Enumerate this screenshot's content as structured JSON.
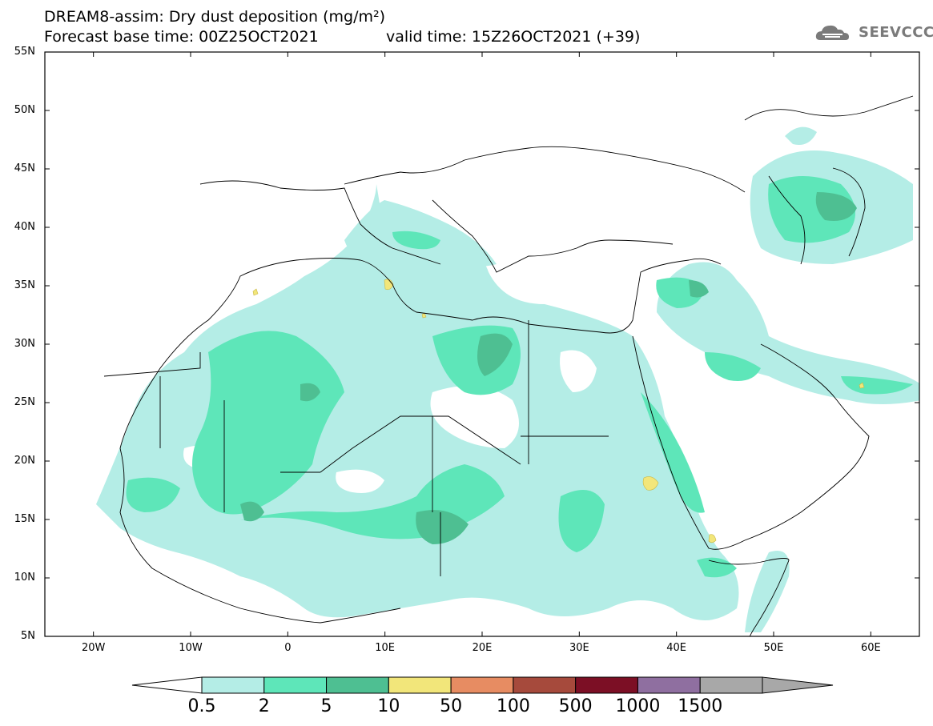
{
  "title": {
    "line1": "DREAM8-assim: Dry dust deposition (mg/m²)",
    "line2": "Forecast base time: 00Z25OCT2021",
    "valid": "valid time: 15Z26OCT2021 (+39)"
  },
  "logo": {
    "text": "SEEVCCC",
    "icon": "cloud-icon"
  },
  "map": {
    "extent": {
      "lon": [
        -25,
        65
      ],
      "lat": [
        5,
        55
      ]
    },
    "lat_ticks": [
      {
        "value": 55,
        "label": "55N"
      },
      {
        "value": 50,
        "label": "50N"
      },
      {
        "value": 45,
        "label": "45N"
      },
      {
        "value": 40,
        "label": "40N"
      },
      {
        "value": 35,
        "label": "35N"
      },
      {
        "value": 30,
        "label": "30N"
      },
      {
        "value": 25,
        "label": "25N"
      },
      {
        "value": 20,
        "label": "20N"
      },
      {
        "value": 15,
        "label": "15N"
      },
      {
        "value": 10,
        "label": "10N"
      },
      {
        "value": 5,
        "label": "5N"
      }
    ],
    "lon_ticks": [
      {
        "value": -20,
        "label": "20W"
      },
      {
        "value": -10,
        "label": "10W"
      },
      {
        "value": 0,
        "label": "0"
      },
      {
        "value": 10,
        "label": "10E"
      },
      {
        "value": 20,
        "label": "20E"
      },
      {
        "value": 30,
        "label": "30E"
      },
      {
        "value": 40,
        "label": "40E"
      },
      {
        "value": 50,
        "label": "50E"
      },
      {
        "value": 60,
        "label": "60E"
      }
    ]
  },
  "colorbar": {
    "levels": [
      "0.5",
      "2",
      "5",
      "10",
      "50",
      "100",
      "500",
      "1000",
      "1500"
    ],
    "colors": [
      "#b4ede6",
      "#5ee6b9",
      "#4ebf92",
      "#f2e67a",
      "#e78c62",
      "#a64a3c",
      "#7c0f25",
      "#8f6fa0",
      "#a8a8a8"
    ]
  }
}
